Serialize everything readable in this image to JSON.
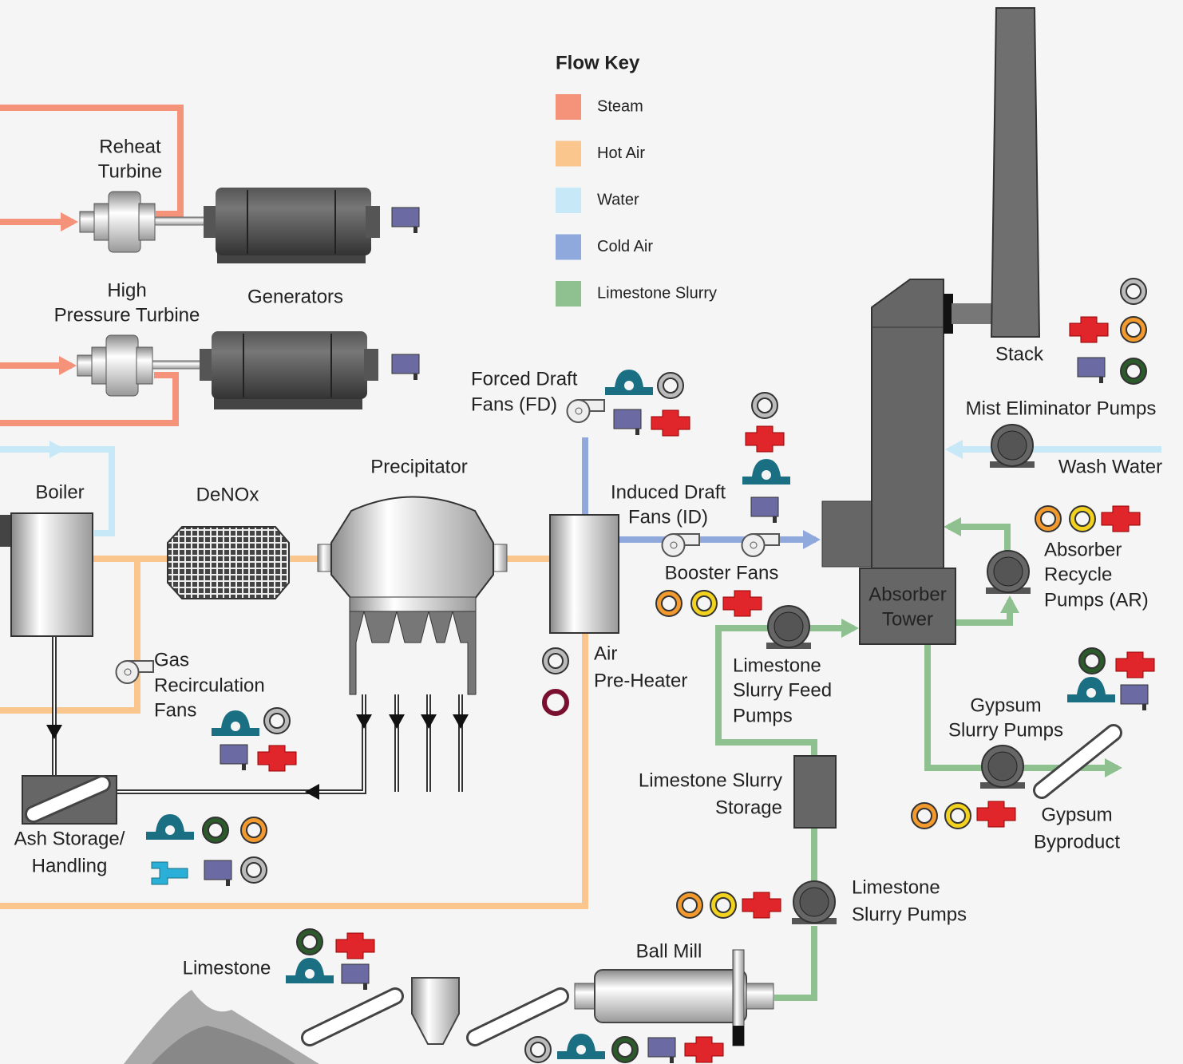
{
  "legend": {
    "title": "Flow Key",
    "items": [
      {
        "label": "Steam",
        "color": "#f4927a"
      },
      {
        "label": "Hot Air",
        "color": "#fbc58e"
      },
      {
        "label": "Water",
        "color": "#c7e8f7"
      },
      {
        "label": "Cold Air",
        "color": "#8fa9dc"
      },
      {
        "label": "Limestone Slurry",
        "color": "#8fc190"
      }
    ]
  },
  "nodes": [
    {
      "lines": [
        "Reheat",
        "Turbine"
      ]
    },
    {
      "lines": [
        "Generators"
      ]
    },
    {
      "lines": [
        "High",
        "Pressure Turbine"
      ]
    },
    {
      "lines": [
        "Forced Draft",
        "Fans (FD)"
      ]
    },
    {
      "lines": [
        "Induced Draft",
        "Fans (ID)"
      ]
    },
    {
      "lines": [
        "Booster Fans"
      ]
    },
    {
      "lines": [
        "Boiler"
      ]
    },
    {
      "lines": [
        "DeNOx"
      ]
    },
    {
      "lines": [
        "Precipitator"
      ]
    },
    {
      "lines": [
        "Gas",
        "Recirculation",
        "Fans"
      ]
    },
    {
      "lines": [
        "Air",
        "Pre-Heater"
      ]
    },
    {
      "lines": [
        "Absorber",
        "Tower"
      ]
    },
    {
      "lines": [
        "Stack"
      ]
    },
    {
      "lines": [
        "Mist Eliminator Pumps"
      ]
    },
    {
      "lines": [
        "Wash Water"
      ]
    },
    {
      "lines": [
        "Absorber",
        "Recycle",
        "Pumps (AR)"
      ]
    },
    {
      "lines": [
        "Limestone",
        "Slurry Feed",
        "Pumps"
      ]
    },
    {
      "lines": [
        "Gypsum",
        "Slurry Pumps"
      ]
    },
    {
      "lines": [
        "Gypsum",
        "Byproduct"
      ]
    },
    {
      "lines": [
        "Limestone Slurry",
        "Storage"
      ]
    },
    {
      "lines": [
        "Limestone",
        "Slurry Pumps"
      ]
    },
    {
      "lines": [
        "Ball Mill"
      ]
    },
    {
      "lines": [
        "Limestone"
      ]
    },
    {
      "lines": [
        "Ash Storage/",
        "Handling"
      ]
    }
  ]
}
